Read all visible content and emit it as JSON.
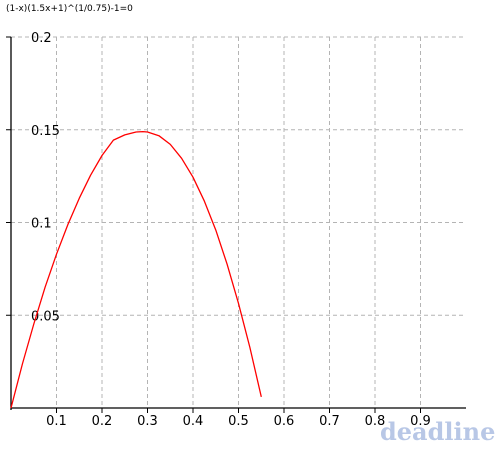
{
  "chart_data": {
    "type": "line",
    "title": "(1-x)(1.5x+1)^(1/0.75)-1=0",
    "xlabel": "",
    "ylabel": "",
    "xlim": [
      0,
      1.0
    ],
    "ylim": [
      0,
      0.2
    ],
    "x_ticks": [
      0.1,
      0.2,
      0.3,
      0.4,
      0.5,
      0.6,
      0.7,
      0.8,
      0.9
    ],
    "x_tick_labels": [
      "0.1",
      "0.2",
      "0.3",
      "0.4",
      "0.5",
      "0.6",
      "0.7",
      "0.8",
      "0.9"
    ],
    "y_ticks": [
      0.05,
      0.1,
      0.15,
      0.2
    ],
    "y_tick_labels": [
      "0.05",
      "0.1",
      "0.15",
      "0.2"
    ],
    "grid": true,
    "grid_style": "dashed",
    "series": [
      {
        "color": "#ff0000",
        "x": [
          0,
          0.025,
          0.05,
          0.075,
          0.1,
          0.125,
          0.15,
          0.175,
          0.2,
          0.225,
          0.25,
          0.275,
          0.29,
          0.3,
          0.325,
          0.35,
          0.375,
          0.4,
          0.425,
          0.45,
          0.475,
          0.5,
          0.525,
          0.55
        ],
        "y": [
          0,
          0.0237,
          0.0453,
          0.0651,
          0.0829,
          0.0989,
          0.1131,
          0.1255,
          0.1361,
          0.1444,
          0.1472,
          0.1488,
          0.149,
          0.1488,
          0.1468,
          0.1421,
          0.1346,
          0.1244,
          0.1115,
          0.0959,
          0.0775,
          0.0564,
          0.0326,
          0.006
        ]
      }
    ]
  },
  "watermark": "deadline"
}
